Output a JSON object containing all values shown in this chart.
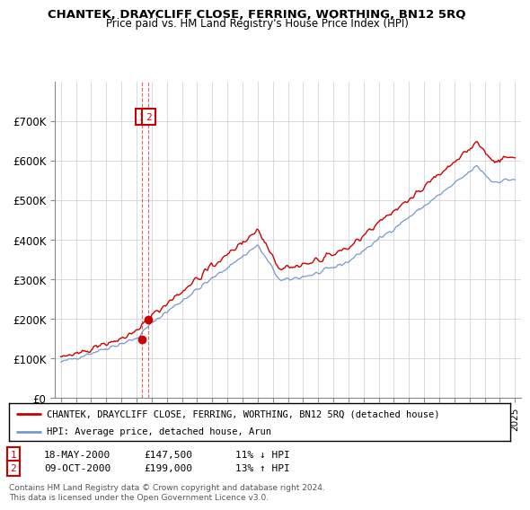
{
  "title": "CHANTEK, DRAYCLIFF CLOSE, FERRING, WORTHING, BN12 5RQ",
  "subtitle": "Price paid vs. HM Land Registry's House Price Index (HPI)",
  "legend_line1": "CHANTEK, DRAYCLIFF CLOSE, FERRING, WORTHING, BN12 5RQ (detached house)",
  "legend_line2": "HPI: Average price, detached house, Arun",
  "red_color": "#cc0000",
  "blue_color": "#7799cc",
  "annotation1_label": "1",
  "annotation1_date": "18-MAY-2000",
  "annotation1_price": "£147,500",
  "annotation1_hpi": "11% ↓ HPI",
  "annotation2_label": "2",
  "annotation2_date": "09-OCT-2000",
  "annotation2_price": "£199,000",
  "annotation2_hpi": "13% ↑ HPI",
  "footer": "Contains HM Land Registry data © Crown copyright and database right 2024.\nThis data is licensed under the Open Government Licence v3.0.",
  "ylim_min": 0,
  "ylim_max": 750000,
  "yticks": [
    0,
    100000,
    200000,
    300000,
    400000,
    500000,
    600000,
    700000
  ],
  "ytick_labels": [
    "£0",
    "£100K",
    "£200K",
    "£300K",
    "£400K",
    "£500K",
    "£600K",
    "£700K"
  ]
}
